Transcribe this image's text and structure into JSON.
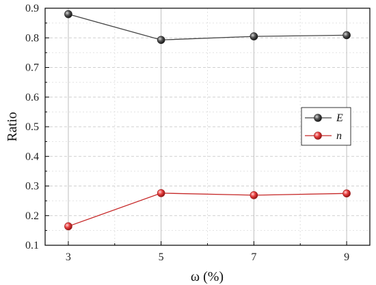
{
  "chart_data": {
    "type": "line",
    "title": "",
    "xlabel": "ω (%)",
    "ylabel": "Ratio",
    "x": [
      3,
      5,
      7,
      9
    ],
    "xticks": [
      "3",
      "5",
      "7",
      "9"
    ],
    "xlim": [
      2.5,
      9.5
    ],
    "ylim": [
      0.1,
      0.9
    ],
    "yticks": [
      "0.1",
      "0.2",
      "0.3",
      "0.4",
      "0.5",
      "0.6",
      "0.7",
      "0.8",
      "0.9"
    ],
    "grid": true,
    "legend_position": "right",
    "series": [
      {
        "name": "E",
        "color": "#3a3a3a",
        "line_color": "#444444",
        "values": [
          0.88,
          0.793,
          0.805,
          0.809
        ]
      },
      {
        "name": "n",
        "color": "#e03030",
        "line_color": "#c62828",
        "values": [
          0.164,
          0.276,
          0.269,
          0.275
        ]
      }
    ]
  }
}
